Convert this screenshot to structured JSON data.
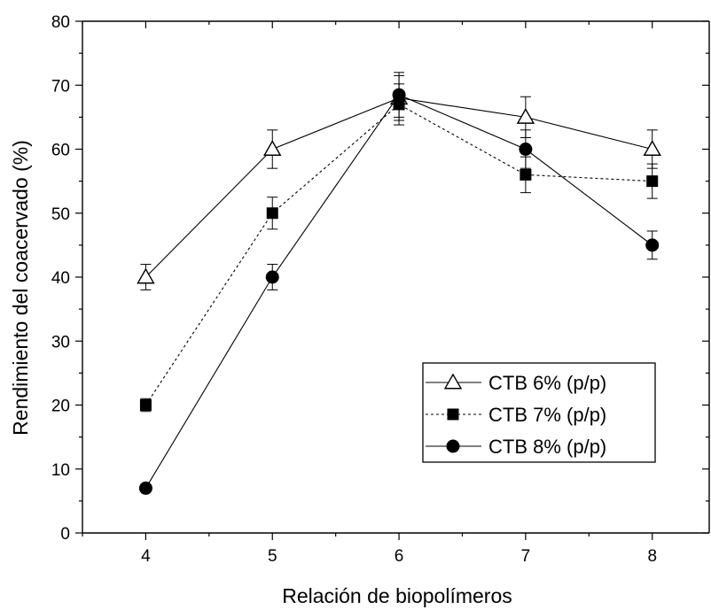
{
  "chart_data": {
    "type": "line",
    "title": "",
    "xlabel": "Relación de biopolímeros",
    "ylabel": "Rendimiento del coacervado (%)",
    "x": [
      4,
      5,
      6,
      7,
      8
    ],
    "xlim": [
      3.5,
      8.45
    ],
    "ylim": [
      0,
      80
    ],
    "xticks": [
      4,
      5,
      6,
      7,
      8
    ],
    "yticks": [
      0,
      10,
      20,
      30,
      40,
      50,
      60,
      70,
      80
    ],
    "grid": false,
    "legend_position": "bottom-right",
    "series": [
      {
        "name": "CTB 6% (p/p)",
        "marker": "open-triangle",
        "line_style": "solid",
        "values": [
          40,
          60,
          68,
          65,
          60
        ],
        "errors": [
          2,
          3,
          3.5,
          3.2,
          3
        ]
      },
      {
        "name": "CTB 7% (p/p)",
        "marker": "filled-square",
        "line_style": "dotted",
        "values": [
          20,
          50,
          67,
          56,
          55
        ],
        "errors": [
          1,
          2.5,
          3.2,
          2.8,
          2.7
        ]
      },
      {
        "name": "CTB 8% (p/p)",
        "marker": "filled-circle",
        "line_style": "solid",
        "values": [
          7,
          40,
          68.5,
          60,
          45
        ],
        "errors": [
          0,
          2,
          3.5,
          3,
          2.2
        ]
      }
    ]
  }
}
